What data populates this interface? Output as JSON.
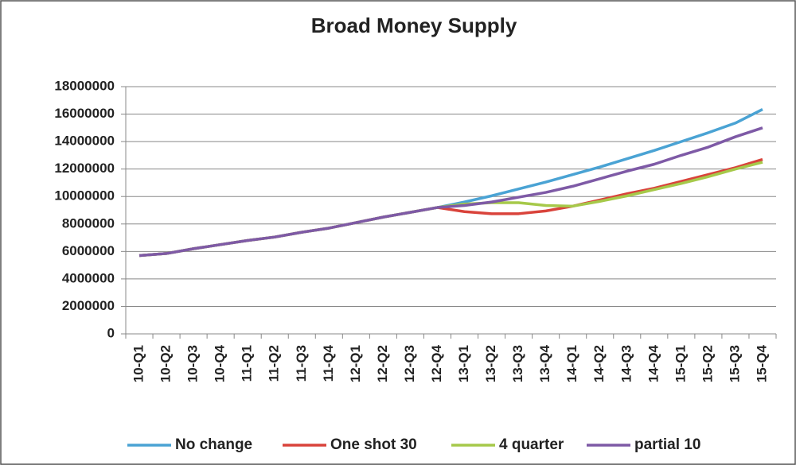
{
  "chart_data": {
    "type": "line",
    "title": "Broad Money Supply",
    "categories": [
      "10-Q1",
      "10-Q2",
      "10-Q3",
      "10-Q4",
      "11-Q1",
      "11-Q2",
      "11-Q3",
      "11-Q4",
      "12-Q1",
      "12-Q2",
      "12-Q3",
      "12-Q4",
      "13-Q1",
      "13-Q2",
      "13-Q3",
      "13-Q4",
      "14-Q1",
      "14-Q2",
      "14-Q3",
      "14-Q4",
      "15-Q1",
      "15-Q2",
      "15-Q3",
      "15-Q4"
    ],
    "series": [
      {
        "name": "No change",
        "color": "#4aa3d4",
        "values": [
          5700000,
          5850000,
          6200000,
          6500000,
          6800000,
          7050000,
          7400000,
          7700000,
          8100000,
          8500000,
          8850000,
          9200000,
          9600000,
          10050000,
          10550000,
          11050000,
          11600000,
          12150000,
          12750000,
          13350000,
          14000000,
          14650000,
          15350000,
          16350000
        ]
      },
      {
        "name": "One shot 30",
        "color": "#d9433b",
        "values": [
          5700000,
          5850000,
          6200000,
          6500000,
          6800000,
          7050000,
          7400000,
          7700000,
          8100000,
          8500000,
          8850000,
          9200000,
          8900000,
          8750000,
          8750000,
          8950000,
          9300000,
          9750000,
          10200000,
          10600000,
          11100000,
          11600000,
          12100000,
          12700000
        ]
      },
      {
        "name": "4 quarter",
        "color": "#a6c94a",
        "values": [
          5700000,
          5850000,
          6200000,
          6500000,
          6800000,
          7050000,
          7400000,
          7700000,
          8100000,
          8500000,
          8850000,
          9200000,
          9450000,
          9550000,
          9550000,
          9350000,
          9300000,
          9650000,
          10050000,
          10500000,
          10950000,
          11450000,
          12000000,
          12500000
        ]
      },
      {
        "name": "partial 10",
        "color": "#7e5aa6",
        "values": [
          5700000,
          5850000,
          6200000,
          6500000,
          6800000,
          7050000,
          7400000,
          7700000,
          8100000,
          8500000,
          8850000,
          9200000,
          9350000,
          9600000,
          9950000,
          10300000,
          10750000,
          11300000,
          11850000,
          12350000,
          13000000,
          13600000,
          14350000,
          15000000
        ]
      }
    ],
    "ylim": [
      0,
      18000000
    ],
    "yticks": [
      0,
      2000000,
      4000000,
      6000000,
      8000000,
      10000000,
      12000000,
      14000000,
      16000000,
      18000000
    ],
    "grid": true,
    "legend": "bottom"
  }
}
